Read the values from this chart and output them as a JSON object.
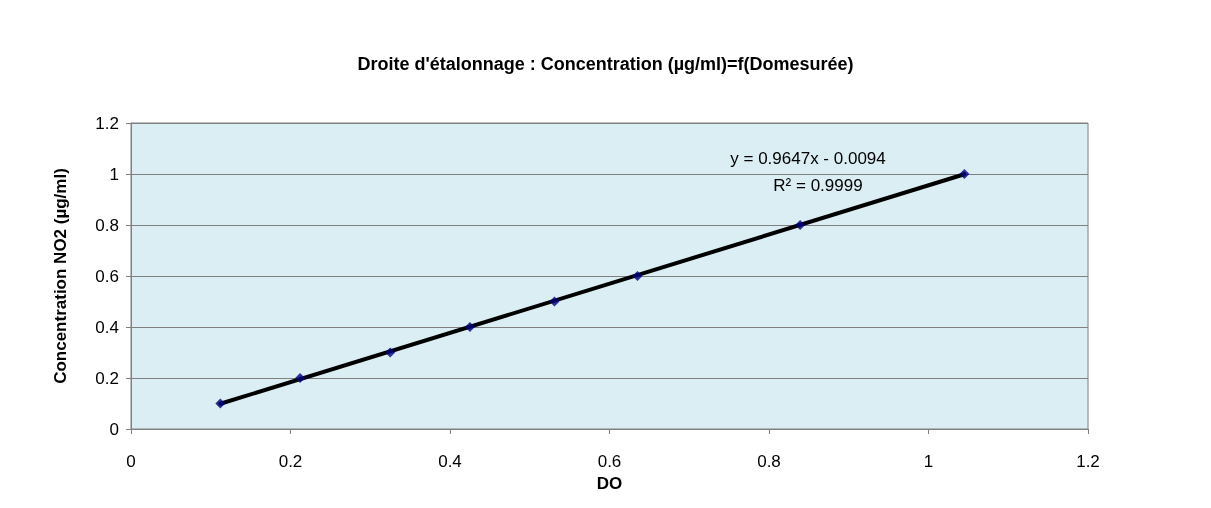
{
  "chart_data": {
    "type": "scatter",
    "title": "Droite d'étalonnage : Concentration (µg/ml)=f(Domesurée)",
    "xlabel": "DO",
    "ylabel": "Concentration NO2 (µg/ml)",
    "series": [
      {
        "color": "#000080",
        "marker": "diamond",
        "x": [
          0.112,
          0.212,
          0.325,
          0.425,
          0.531,
          0.635,
          0.839,
          1.045
        ],
        "values": [
          0.1,
          0.2,
          0.3,
          0.4,
          0.5,
          0.6,
          0.8,
          1.0
        ]
      },
      {
        "type": "line",
        "color": "#000000",
        "marker": "none",
        "line_style": "solid",
        "x": [
          0.112,
          1.045
        ],
        "values": [
          0.099,
          0.999
        ]
      }
    ],
    "annotations": [
      "y = 0.9647x - 0.0094",
      "R² = 0.9999"
    ],
    "xlim": [
      0,
      1.2
    ],
    "xticks": [
      0,
      0.2,
      0.4,
      0.6,
      0.8,
      1,
      1.2
    ],
    "ylim": [
      0,
      1.2
    ],
    "yticks": [
      0,
      0.2,
      0.4,
      0.6,
      0.8,
      1,
      1.2
    ],
    "grid": "y"
  }
}
